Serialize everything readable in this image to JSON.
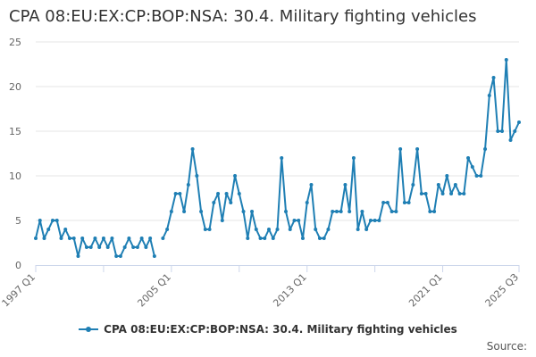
{
  "chart_data": {
    "type": "line",
    "title": "CPA 08:EU:EX:CP:BOP:NSA: 30.4. Military fighting vehicles",
    "xlabel": "",
    "ylabel": "",
    "ylim": [
      0,
      25
    ],
    "yticks": [
      0,
      5,
      10,
      15,
      20,
      25
    ],
    "grid": true,
    "legend_position": "bottom-center",
    "x_tick_labels": [
      {
        "label": "1997 Q1",
        "index": 0
      },
      {
        "label": "2005 Q1",
        "index": 32
      },
      {
        "label": "2013 Q1",
        "index": 64
      },
      {
        "label": "2021 Q1",
        "index": 96
      },
      {
        "label": "2025 Q3",
        "index": 114
      }
    ],
    "x_minor_tick_indices": [
      0,
      16,
      32,
      48,
      64,
      80,
      96,
      114
    ],
    "series": [
      {
        "name": "CPA 08:EU:EX:CP:BOP:NSA: 30.4. Military fighting vehicles",
        "color": "#1f7fb4",
        "values": [
          3,
          5,
          3,
          4,
          5,
          5,
          3,
          4,
          3,
          3,
          1,
          3,
          2,
          2,
          3,
          2,
          3,
          2,
          3,
          1,
          1,
          2,
          3,
          2,
          2,
          3,
          2,
          3,
          1,
          null,
          3,
          4,
          6,
          8,
          8,
          6,
          9,
          13,
          10,
          6,
          4,
          4,
          7,
          8,
          5,
          8,
          7,
          10,
          8,
          6,
          3,
          6,
          4,
          3,
          3,
          4,
          3,
          4,
          12,
          6,
          4,
          5,
          5,
          3,
          7,
          9,
          4,
          3,
          3,
          4,
          6,
          6,
          6,
          9,
          6,
          12,
          4,
          6,
          4,
          5,
          5,
          5,
          7,
          7,
          6,
          6,
          13,
          7,
          7,
          9,
          13,
          8,
          8,
          6,
          6,
          9,
          8,
          10,
          8,
          9,
          8,
          8,
          12,
          11,
          10,
          10,
          13,
          19,
          21,
          15,
          15,
          23,
          14,
          15,
          16
        ]
      }
    ]
  },
  "legend": {
    "label": "CPA 08:EU:EX:CP:BOP:NSA: 30.4. Military fighting vehicles"
  },
  "credits": "Source:"
}
